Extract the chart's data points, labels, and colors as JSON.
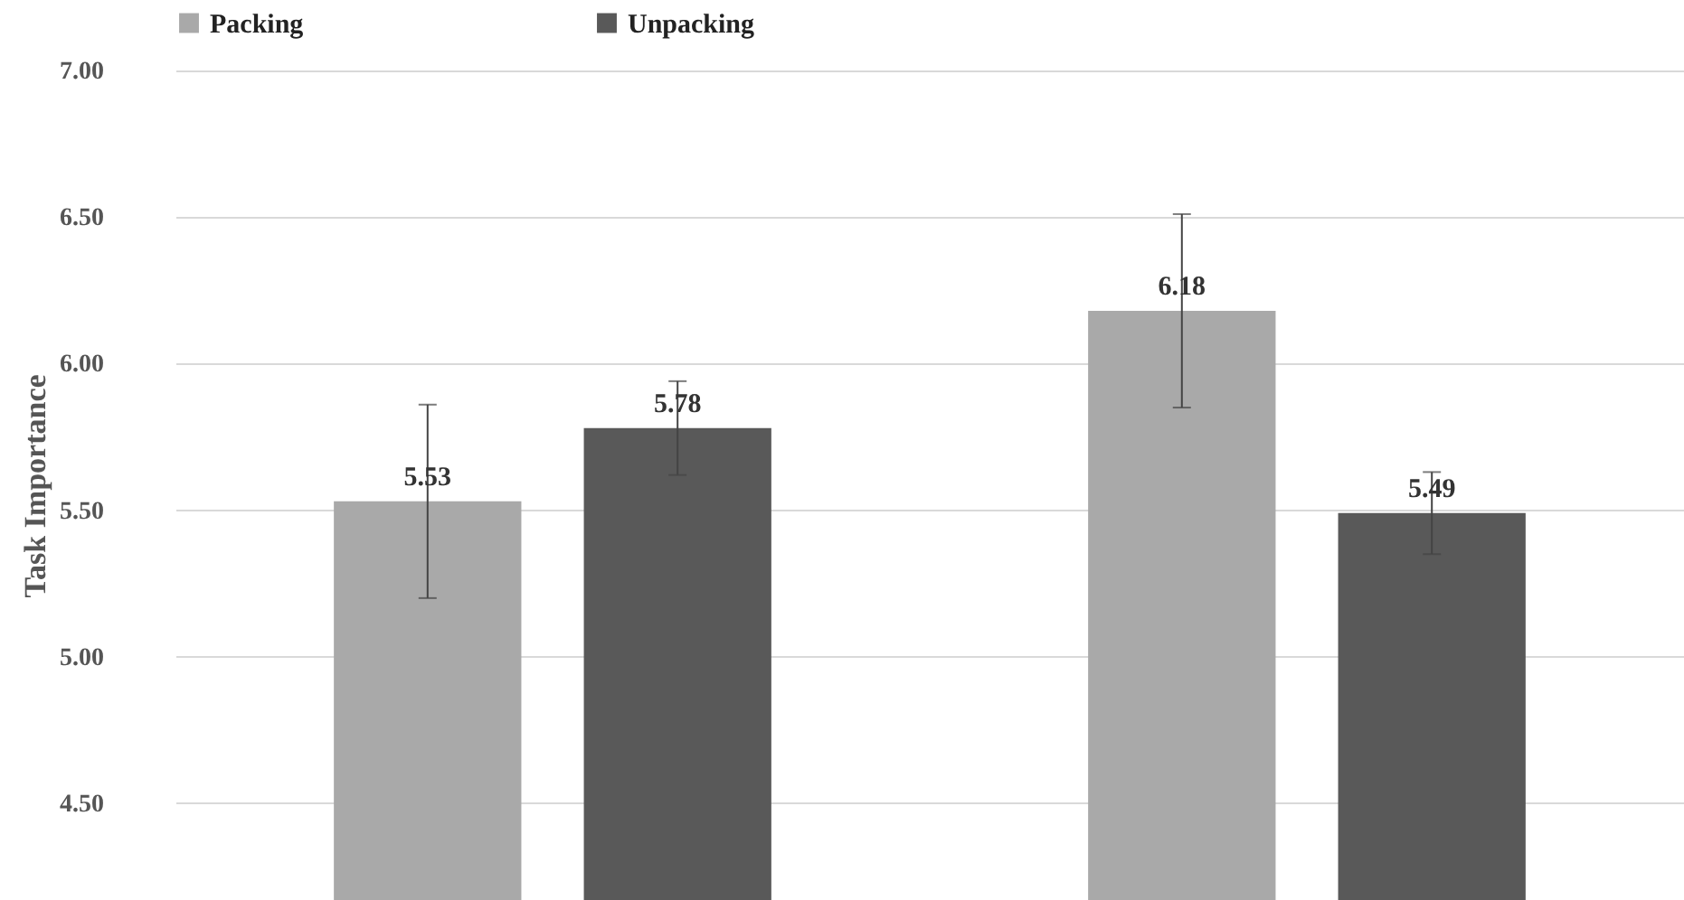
{
  "chart_data": {
    "type": "bar",
    "ylabel": "Task Importance",
    "categories": [
      null,
      null
    ],
    "series": [
      {
        "name": "Packing",
        "color": "#a9a9a9",
        "values": [
          5.53,
          6.18
        ],
        "errors": [
          0.33,
          0.33
        ]
      },
      {
        "name": "Unpacking",
        "color": "#595959",
        "values": [
          5.78,
          5.49
        ],
        "errors": [
          0.16,
          0.14
        ]
      }
    ],
    "ylim": [
      4.17,
      7.0
    ],
    "yticks": [
      {
        "value": 4.5,
        "label": "4.50"
      },
      {
        "value": 5.0,
        "label": "5.00"
      },
      {
        "value": 5.5,
        "label": "5.50"
      },
      {
        "value": 6.0,
        "label": "6.00"
      },
      {
        "value": 6.5,
        "label": "6.50"
      },
      {
        "value": 7.0,
        "label": "7.00"
      }
    ],
    "grid": "y",
    "legend": "top",
    "data_labels": true
  }
}
